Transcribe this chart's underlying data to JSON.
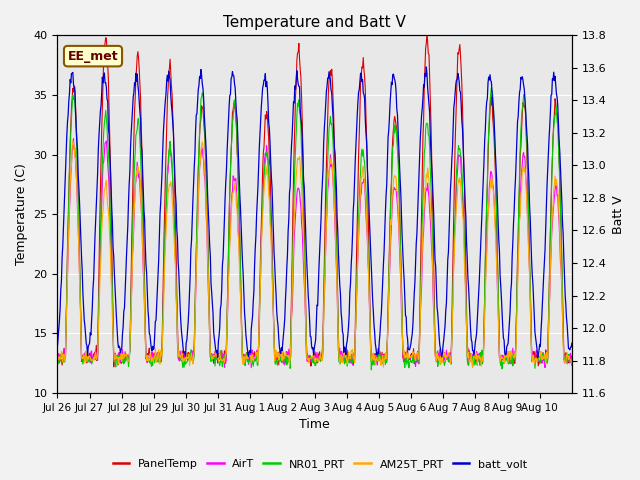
{
  "title": "Temperature and Batt V",
  "xlabel": "Time",
  "ylabel_left": "Temperature (C)",
  "ylabel_right": "Batt V",
  "ylim_left": [
    10,
    40
  ],
  "ylim_right": [
    11.6,
    13.8
  ],
  "bg_color": "#e8e8e8",
  "fig_bg_color": "#f2f2f2",
  "label_box": "EE_met",
  "series_colors": {
    "PanelTemp": "#dd0000",
    "AirT": "#ff00ff",
    "NR01_PRT": "#00cc00",
    "AM25T_PRT": "#ffaa00",
    "batt_volt": "#0000cc"
  },
  "xtick_labels": [
    "Jul 26",
    "Jul 27",
    "Jul 28",
    "Jul 29",
    "Jul 30",
    "Jul 31",
    "Aug 1",
    "Aug 2",
    "Aug 3",
    "Aug 4",
    "Aug 5",
    "Aug 6",
    "Aug 7",
    "Aug 8",
    "Aug 9",
    "Aug 10"
  ],
  "yticks_left": [
    10,
    15,
    20,
    25,
    30,
    35,
    40
  ],
  "yticks_right": [
    11.6,
    11.8,
    12.0,
    12.2,
    12.4,
    12.6,
    12.8,
    13.0,
    13.2,
    13.4,
    13.6,
    13.8
  ],
  "n_days": 16,
  "pts_per_day": 48
}
